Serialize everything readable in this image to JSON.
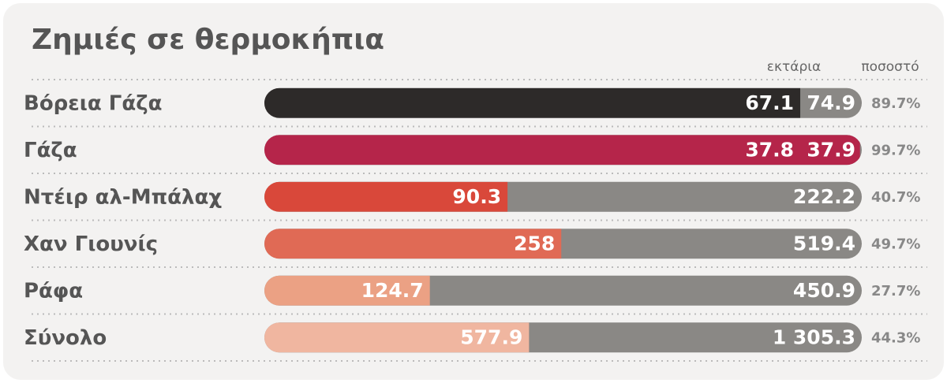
{
  "chart_data": {
    "type": "progress-bar",
    "title": "Ζημιές σε θερμοκήπια",
    "value_header": "εκτάρια",
    "percent_header": "ποσοστό",
    "categories": [
      "Βόρεια Γάζα",
      "Γάζα",
      "Ντέιρ αλ-Μπάλαχ",
      "Χαν Γιουνίς",
      "Ράφα",
      "Σύνολο"
    ],
    "values": [
      67.1,
      37.8,
      90.3,
      258,
      124.7,
      577.9
    ],
    "totals": [
      74.9,
      37.9,
      222.2,
      519.4,
      450.9,
      1305.3
    ],
    "totals_labels": [
      "74.9",
      "37.9",
      "222.2",
      "519.4",
      "450.9",
      "1 305.3"
    ],
    "percents": [
      89.7,
      99.7,
      40.7,
      49.7,
      27.7,
      44.3
    ],
    "percent_labels": [
      "89.7%",
      "99.7%",
      "40.7%",
      "49.7%",
      "27.7%",
      "44.3%"
    ],
    "colors": [
      "#2d2a29",
      "#b5254a",
      "#d9483a",
      "#e06a55",
      "#eba184",
      "#f0b6a0"
    ],
    "track_color": "#8a8885"
  }
}
